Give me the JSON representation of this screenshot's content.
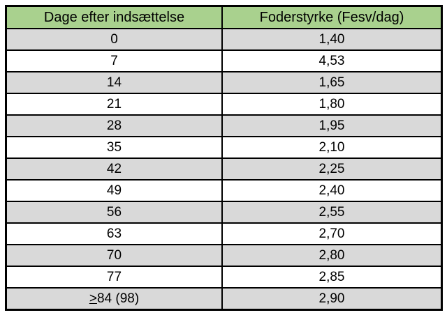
{
  "table": {
    "headers": [
      "Dage efter indsættelse",
      "Foderstyrke (Fesv/dag)"
    ],
    "rows": [
      {
        "day": "0",
        "value": "1,40"
      },
      {
        "day": "7",
        "value": "4,53"
      },
      {
        "day": "14",
        "value": "1,65"
      },
      {
        "day": "21",
        "value": "1,80"
      },
      {
        "day": "28",
        "value": "1,95"
      },
      {
        "day": "35",
        "value": "2,10"
      },
      {
        "day": "42",
        "value": "2,25"
      },
      {
        "day": "49",
        "value": "2,40"
      },
      {
        "day": "56",
        "value": "2,55"
      },
      {
        "day": "63",
        "value": "2,70"
      },
      {
        "day": "70",
        "value": "2,80"
      },
      {
        "day": "77",
        "value": "2,85"
      },
      {
        "day_prefix": ">",
        "day": "84 (98)",
        "value": "2,90"
      }
    ],
    "colors": {
      "header_bg": "#A9D18E",
      "row_shade_bg": "#D9D9D9",
      "border": "#000000",
      "text": "#000000"
    }
  },
  "chart_data": {
    "type": "table",
    "title": "",
    "columns": [
      "Dage efter indsættelse",
      "Foderstyrke (Fesv/dag)"
    ],
    "rows": [
      [
        "0",
        "1,40"
      ],
      [
        "7",
        "4,53"
      ],
      [
        "14",
        "1,65"
      ],
      [
        "21",
        "1,80"
      ],
      [
        "28",
        "1,95"
      ],
      [
        "35",
        "2,10"
      ],
      [
        "42",
        "2,25"
      ],
      [
        "49",
        "2,40"
      ],
      [
        "56",
        "2,55"
      ],
      [
        "63",
        "2,70"
      ],
      [
        "70",
        "2,80"
      ],
      [
        "77",
        "2,85"
      ],
      [
        ">84 (98)",
        "2,90"
      ]
    ]
  }
}
